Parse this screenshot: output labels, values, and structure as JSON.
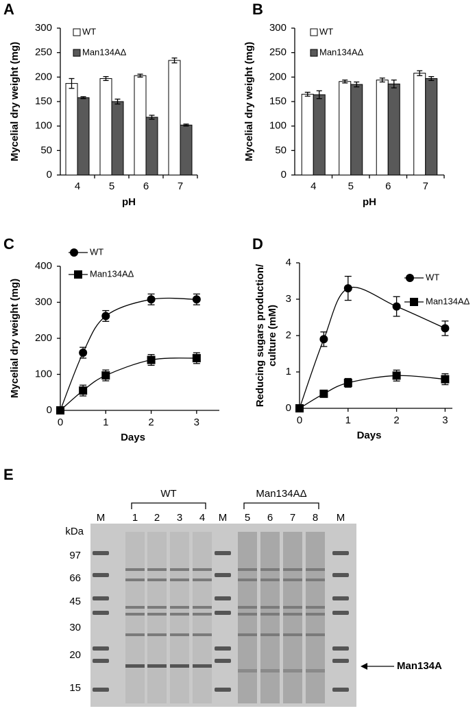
{
  "chart_data": [
    {
      "type": "bar",
      "panel": "A",
      "xlabel": "pH",
      "ylabel": "Mycelial dry weight (mg)",
      "categories": [
        "4",
        "5",
        "6",
        "7"
      ],
      "series": [
        {
          "name": "WT",
          "color": "#ffffff",
          "values": [
            187,
            197,
            203,
            234
          ],
          "errors": [
            10,
            4,
            3,
            5
          ]
        },
        {
          "name": "Man134AΔ",
          "color": "#595959",
          "values": [
            158,
            150,
            118,
            102
          ],
          "errors": [
            2,
            5,
            4,
            2
          ]
        }
      ],
      "ylim": [
        0,
        300
      ],
      "yticks": [
        0,
        50,
        100,
        150,
        200,
        250,
        300
      ],
      "legend": "top-left"
    },
    {
      "type": "bar",
      "panel": "B",
      "xlabel": "pH",
      "ylabel": "Mycelial dry weight (mg)",
      "categories": [
        "4",
        "5",
        "6",
        "7"
      ],
      "series": [
        {
          "name": "WT",
          "color": "#ffffff",
          "values": [
            165,
            191,
            194,
            208
          ],
          "errors": [
            4,
            3,
            4,
            5
          ]
        },
        {
          "name": "Man134AΔ",
          "color": "#595959",
          "values": [
            164,
            185,
            186,
            197
          ],
          "errors": [
            8,
            5,
            8,
            4
          ]
        }
      ],
      "ylim": [
        0,
        300
      ],
      "yticks": [
        0,
        50,
        100,
        150,
        200,
        250,
        300
      ],
      "legend": "top-left"
    },
    {
      "type": "line",
      "panel": "C",
      "xlabel": "Days",
      "ylabel": "Mycelial dry weight (mg)",
      "x": [
        0,
        0.5,
        1,
        2,
        3
      ],
      "series": [
        {
          "name": "WT",
          "color": "#000000",
          "marker": "circle",
          "values": [
            0,
            160,
            262,
            308,
            308
          ],
          "errors": [
            0,
            15,
            15,
            15,
            15
          ]
        },
        {
          "name": "Man134AΔ",
          "color": "#000000",
          "marker": "square",
          "values": [
            0,
            55,
            97,
            140,
            145
          ],
          "errors": [
            0,
            15,
            15,
            15,
            15
          ]
        }
      ],
      "xlim": [
        0,
        3.5
      ],
      "xticks": [
        0,
        1,
        2,
        3
      ],
      "ylim": [
        0,
        400
      ],
      "yticks": [
        0,
        100,
        200,
        300,
        400
      ],
      "legend": "top-left"
    },
    {
      "type": "line",
      "panel": "D",
      "xlabel": "Days",
      "ylabel": [
        "Reducing sugars production/",
        "culture  (mM)"
      ],
      "x": [
        0,
        0.5,
        1,
        2,
        3
      ],
      "series": [
        {
          "name": "WT",
          "color": "#000000",
          "marker": "circle",
          "values": [
            0,
            1.9,
            3.3,
            2.8,
            2.2
          ],
          "errors": [
            0,
            0.2,
            0.33,
            0.27,
            0.2
          ]
        },
        {
          "name": "Man134AΔ",
          "color": "#000000",
          "marker": "square",
          "values": [
            0,
            0.4,
            0.7,
            0.9,
            0.8
          ],
          "errors": [
            0,
            0.05,
            0.12,
            0.15,
            0.15
          ]
        }
      ],
      "xlim": [
        0,
        3.15
      ],
      "xticks": [
        0,
        1,
        2,
        3
      ],
      "ylim": [
        0,
        4
      ],
      "yticks": [
        0,
        1,
        2,
        3,
        4
      ],
      "legend": "top-right"
    }
  ],
  "gel": {
    "panel": "E",
    "groups": [
      "WT",
      "Man134AΔ"
    ],
    "lanes": [
      "M",
      "1",
      "2",
      "3",
      "4",
      "M",
      "5",
      "6",
      "7",
      "8",
      "M"
    ],
    "mw_unit": "kDa",
    "mw_markers": [
      "97",
      "66",
      "45",
      "30",
      "20",
      "15"
    ],
    "arrow_label": "Man134A"
  }
}
